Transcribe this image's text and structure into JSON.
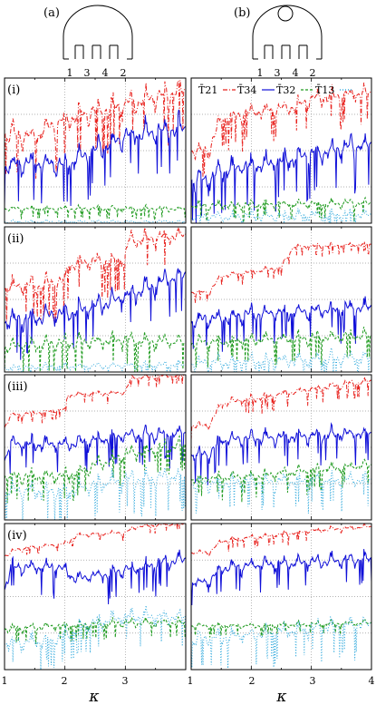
{
  "chart_data": {
    "type": "line",
    "schematics": [
      {
        "label": "(a)",
        "lead_labels": [
          "1",
          "3",
          "4",
          "2"
        ],
        "has_obstacle": false
      },
      {
        "label": "(b)",
        "lead_labels": [
          "1",
          "3",
          "4",
          "2"
        ],
        "has_obstacle": true
      }
    ],
    "row_labels": [
      "(i)",
      "(ii)",
      "(iii)",
      "(iv)"
    ],
    "legend": [
      {
        "name": "T̄21",
        "color": "#e8231f",
        "style": "dashdot"
      },
      {
        "name": "T̄34",
        "color": "#1010d8",
        "style": "solid"
      },
      {
        "name": "T̄32",
        "color": "#1e9a1e",
        "style": "dashed"
      },
      {
        "name": "T̄13",
        "color": "#33aadd",
        "style": "dotted"
      }
    ],
    "xlabel": "κ",
    "xlim": [
      1,
      4
    ],
    "xticks_left": [
      "1",
      "2",
      "3",
      ""
    ],
    "xticks_right": [
      "1",
      "2",
      "3",
      "4"
    ],
    "grid": true,
    "panels": [
      {
        "col": 0,
        "row": 0,
        "series": [
          {
            "name": "T̄21",
            "base": [
              [
                1,
                0.62
              ],
              [
                1.5,
                0.6
              ],
              [
                2,
                0.72
              ],
              [
                3,
                0.82
              ],
              [
                4,
                0.92
              ]
            ],
            "osc": 0.22,
            "steps": [
              2,
              3
            ]
          },
          {
            "name": "T̄34",
            "base": [
              [
                1,
                0.4
              ],
              [
                1.5,
                0.42
              ],
              [
                2,
                0.4
              ],
              [
                2.5,
                0.5
              ],
              [
                3,
                0.6
              ],
              [
                4,
                0.66
              ]
            ],
            "osc": 0.22,
            "steps": [
              2,
              3
            ]
          },
          {
            "name": "T̄32",
            "base": [
              [
                1,
                0.1
              ],
              [
                4,
                0.1
              ]
            ],
            "osc": 0.05,
            "steps": []
          },
          {
            "name": "T̄13",
            "base": [
              [
                1,
                0.01
              ],
              [
                4,
                0.01
              ]
            ],
            "osc": 0.03,
            "steps": []
          }
        ]
      },
      {
        "col": 1,
        "row": 0,
        "series": [
          {
            "name": "T̄21",
            "base": [
              [
                1,
                0.5
              ],
              [
                1.3,
                0.5
              ],
              [
                1.5,
                0.72
              ],
              [
                2,
                0.76
              ],
              [
                2.7,
                0.8
              ],
              [
                3,
                0.86
              ],
              [
                4,
                0.9
              ]
            ],
            "osc": 0.15,
            "steps": []
          },
          {
            "name": "T̄34",
            "base": [
              [
                1,
                0.3
              ],
              [
                1.3,
                0.3
              ],
              [
                1.5,
                0.36
              ],
              [
                2.5,
                0.42
              ],
              [
                3,
                0.48
              ],
              [
                4,
                0.55
              ]
            ],
            "osc": 0.22,
            "steps": []
          },
          {
            "name": "T̄32",
            "base": [
              [
                1,
                0.12
              ],
              [
                4,
                0.14
              ]
            ],
            "osc": 0.08,
            "steps": []
          },
          {
            "name": "T̄13",
            "base": [
              [
                1,
                0.04
              ],
              [
                4,
                0.06
              ]
            ],
            "osc": 0.12,
            "steps": []
          }
        ]
      },
      {
        "col": 0,
        "row": 1,
        "series": [
          {
            "name": "T̄21",
            "base": [
              [
                1,
                0.58
              ],
              [
                2,
                0.62
              ],
              [
                2.05,
                0.74
              ],
              [
                3,
                0.78
              ],
              [
                3.05,
                0.9
              ],
              [
                4,
                0.95
              ]
            ],
            "osc": 0.18,
            "steps": [
              2,
              3
            ]
          },
          {
            "name": "T̄34",
            "base": [
              [
                1,
                0.35
              ],
              [
                2,
                0.4
              ],
              [
                2.5,
                0.45
              ],
              [
                3,
                0.52
              ],
              [
                4,
                0.68
              ]
            ],
            "osc": 0.2,
            "steps": []
          },
          {
            "name": "T̄32",
            "base": [
              [
                1,
                0.17
              ],
              [
                2,
                0.2
              ],
              [
                3,
                0.22
              ],
              [
                4,
                0.2
              ]
            ],
            "osc": 0.15,
            "steps": []
          },
          {
            "name": "T̄13",
            "base": [
              [
                1,
                0.03
              ],
              [
                4,
                0.05
              ]
            ],
            "osc": 0.07,
            "steps": []
          }
        ]
      },
      {
        "col": 1,
        "row": 1,
        "series": [
          {
            "name": "T̄21",
            "base": [
              [
                1,
                0.55
              ],
              [
                1.3,
                0.55
              ],
              [
                1.5,
                0.66
              ],
              [
                2.5,
                0.72
              ],
              [
                2.7,
                0.86
              ],
              [
                4,
                0.88
              ]
            ],
            "osc": 0.05,
            "steps": []
          },
          {
            "name": "T̄34",
            "base": [
              [
                1,
                0.35
              ],
              [
                2,
                0.4
              ],
              [
                3,
                0.42
              ],
              [
                4,
                0.45
              ]
            ],
            "osc": 0.15,
            "steps": []
          },
          {
            "name": "T̄32",
            "base": [
              [
                1,
                0.2
              ],
              [
                2,
                0.22
              ],
              [
                4,
                0.25
              ]
            ],
            "osc": 0.12,
            "steps": []
          },
          {
            "name": "T̄13",
            "base": [
              [
                1,
                0.06
              ],
              [
                4,
                0.1
              ]
            ],
            "osc": 0.14,
            "steps": []
          }
        ]
      },
      {
        "col": 0,
        "row": 2,
        "series": [
          {
            "name": "T̄21",
            "base": [
              [
                1,
                0.64
              ],
              [
                1.1,
                0.72
              ],
              [
                2,
                0.76
              ],
              [
                2.05,
                0.86
              ],
              [
                3,
                0.88
              ],
              [
                3.1,
                0.98
              ],
              [
                4,
                1.0
              ]
            ],
            "osc": 0.05,
            "steps": []
          },
          {
            "name": "T̄34",
            "base": [
              [
                1,
                0.42
              ],
              [
                1.1,
                0.52
              ],
              [
                2,
                0.52
              ],
              [
                2.5,
                0.55
              ],
              [
                3,
                0.58
              ],
              [
                4,
                0.6
              ]
            ],
            "osc": 0.15,
            "steps": [
              1.2,
              2
            ]
          },
          {
            "name": "T̄32",
            "base": [
              [
                1,
                0.3
              ],
              [
                2,
                0.3
              ],
              [
                3,
                0.45
              ],
              [
                4,
                0.52
              ]
            ],
            "osc": 0.14,
            "steps": []
          },
          {
            "name": "T̄13",
            "base": [
              [
                1,
                0.2
              ],
              [
                2,
                0.2
              ],
              [
                3,
                0.28
              ],
              [
                4,
                0.3
              ]
            ],
            "osc": 0.18,
            "steps": []
          }
        ]
      },
      {
        "col": 1,
        "row": 2,
        "series": [
          {
            "name": "T̄21",
            "base": [
              [
                1,
                0.65
              ],
              [
                1.3,
                0.65
              ],
              [
                1.5,
                0.8
              ],
              [
                3,
                0.9
              ],
              [
                4,
                0.96
              ]
            ],
            "osc": 0.08,
            "steps": []
          },
          {
            "name": "T̄34",
            "base": [
              [
                1,
                0.45
              ],
              [
                1.3,
                0.45
              ],
              [
                1.5,
                0.55
              ],
              [
                4,
                0.6
              ]
            ],
            "osc": 0.14,
            "steps": []
          },
          {
            "name": "T̄32",
            "base": [
              [
                1,
                0.28
              ],
              [
                2,
                0.3
              ],
              [
                4,
                0.38
              ]
            ],
            "osc": 0.1,
            "steps": []
          },
          {
            "name": "T̄13",
            "base": [
              [
                1,
                0.25
              ],
              [
                4,
                0.28
              ]
            ],
            "osc": 0.14,
            "steps": []
          }
        ]
      },
      {
        "col": 0,
        "row": 3,
        "series": [
          {
            "name": "T̄21",
            "base": [
              [
                1,
                0.78
              ],
              [
                1.2,
                0.82
              ],
              [
                1.5,
                0.84
              ],
              [
                2,
                0.86
              ],
              [
                2.2,
                0.92
              ],
              [
                3,
                0.94
              ],
              [
                3.2,
                0.98
              ],
              [
                4,
                1.0
              ]
            ],
            "osc": 0.04,
            "steps": []
          },
          {
            "name": "T̄34",
            "base": [
              [
                1,
                0.55
              ],
              [
                1.1,
                0.7
              ],
              [
                1.9,
                0.7
              ],
              [
                2.2,
                0.62
              ],
              [
                3,
                0.68
              ],
              [
                4,
                0.76
              ]
            ],
            "osc": 0.14,
            "steps": []
          },
          {
            "name": "T̄32",
            "base": [
              [
                1,
                0.28
              ],
              [
                2,
                0.3
              ],
              [
                3,
                0.32
              ],
              [
                4,
                0.32
              ]
            ],
            "osc": 0.08,
            "steps": []
          },
          {
            "name": "T̄13",
            "base": [
              [
                1,
                0.18
              ],
              [
                1.8,
                0.2
              ],
              [
                2.3,
                0.3
              ],
              [
                3,
                0.36
              ],
              [
                4,
                0.36
              ]
            ],
            "osc": 0.15,
            "steps": []
          }
        ]
      },
      {
        "col": 1,
        "row": 3,
        "series": [
          {
            "name": "T̄21",
            "base": [
              [
                1,
                0.8
              ],
              [
                1.3,
                0.8
              ],
              [
                1.5,
                0.88
              ],
              [
                3,
                0.95
              ],
              [
                4,
                0.98
              ]
            ],
            "osc": 0.05,
            "steps": []
          },
          {
            "name": "T̄34",
            "base": [
              [
                1,
                0.6
              ],
              [
                1.3,
                0.6
              ],
              [
                1.5,
                0.7
              ],
              [
                4,
                0.76
              ]
            ],
            "osc": 0.13,
            "steps": []
          },
          {
            "name": "T̄32",
            "base": [
              [
                1,
                0.3
              ],
              [
                2,
                0.3
              ],
              [
                4,
                0.32
              ]
            ],
            "osc": 0.05,
            "steps": []
          },
          {
            "name": "T̄13",
            "base": [
              [
                1,
                0.2
              ],
              [
                2,
                0.24
              ],
              [
                4,
                0.32
              ]
            ],
            "osc": 0.15,
            "steps": []
          }
        ]
      }
    ]
  }
}
